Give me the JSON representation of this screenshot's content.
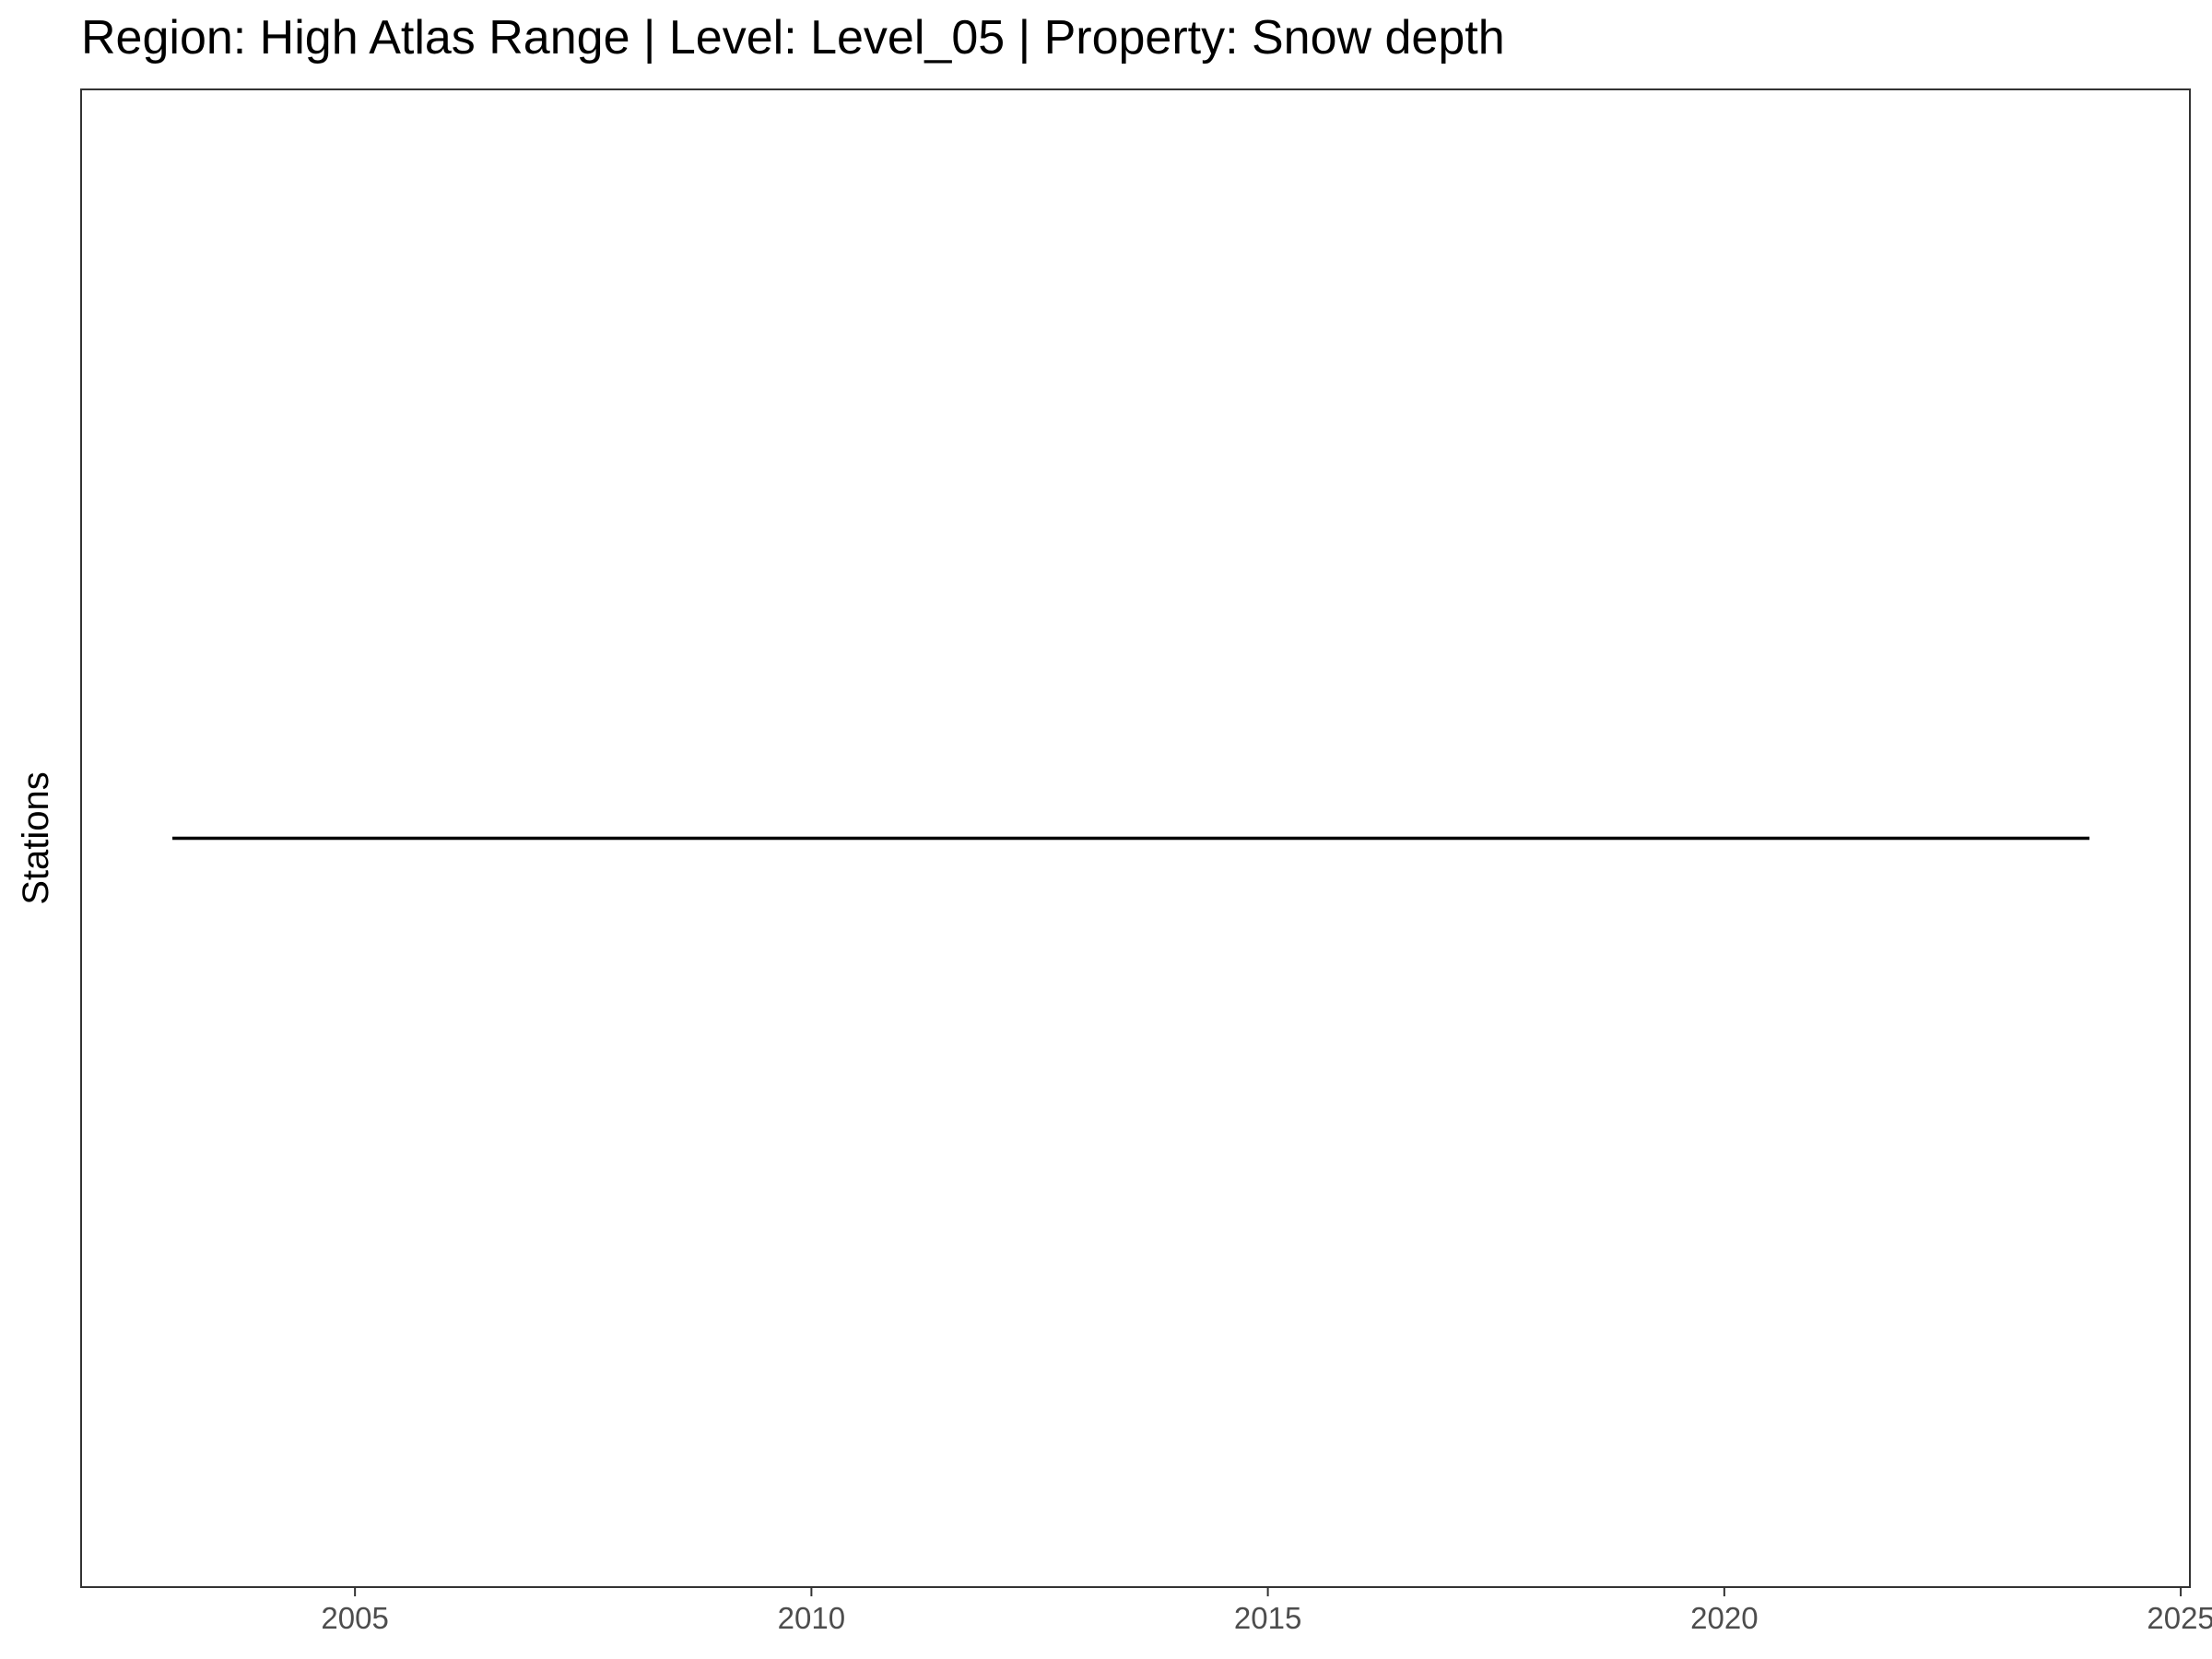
{
  "chart_data": {
    "type": "line",
    "title": "Region: High Atlas Range | Level: Level_05 | Property: Snow depth",
    "xlabel": "",
    "ylabel": "Stations",
    "xlim": [
      2002,
      2025.1
    ],
    "ylim": [
      0,
      2
    ],
    "x_ticks": [
      2005,
      2010,
      2015,
      2020,
      2025
    ],
    "x_tick_labels": [
      "2005",
      "2010",
      "2015",
      "2020",
      "2025"
    ],
    "y_ticks": [],
    "grid": false,
    "legend": "none",
    "series": [
      {
        "x": [
          2003,
          2024
        ],
        "y": [
          1,
          1
        ],
        "color": "#000000"
      }
    ]
  }
}
